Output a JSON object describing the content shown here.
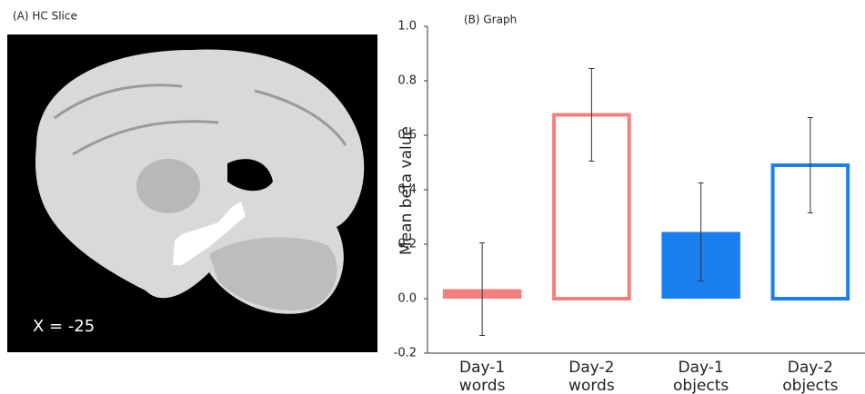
{
  "panel_a": {
    "title": "(A) HC Slice",
    "label": "X = -25"
  },
  "chart_data": {
    "type": "bar",
    "title": "(B) Graph",
    "y_label": "Mean beta value",
    "categories": [
      [
        "Day-1",
        "words"
      ],
      [
        "Day-2",
        "words"
      ],
      [
        "Day-1",
        "objects"
      ],
      [
        "Day-2",
        "objects"
      ]
    ],
    "values": [
      0.035,
      0.675,
      0.245,
      0.49
    ],
    "errors": [
      0.17,
      0.17,
      0.18,
      0.175
    ],
    "colors": [
      "#f47f7f",
      "#f47f7f",
      "#1a80f0",
      "#1a80f0"
    ],
    "filled": [
      true,
      false,
      true,
      false
    ],
    "ylim": [
      -0.2,
      1.0
    ],
    "yticks": [
      -0.2,
      {
        "value": 0,
        "label": "0.0"
      },
      0.2,
      0.4,
      0.6,
      0.8,
      {
        "value": 1.0,
        "label": "1.0"
      }
    ],
    "grid": false
  }
}
